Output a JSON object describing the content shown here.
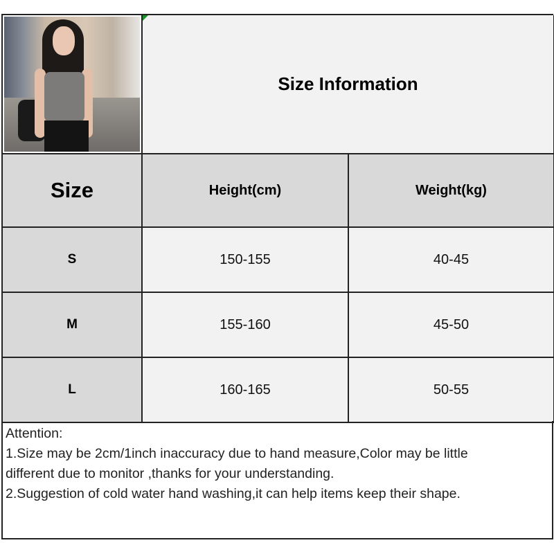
{
  "title": "Size Information",
  "headers": {
    "size": "Size",
    "height": "Height(cm)",
    "weight": "Weight(kg)"
  },
  "rows": [
    {
      "size": "S",
      "height": "150-155",
      "weight": "40-45"
    },
    {
      "size": "M",
      "height": "155-160",
      "weight": "45-50"
    },
    {
      "size": "L",
      "height": "160-165",
      "weight": "50-55"
    }
  ],
  "notes": {
    "heading": "Attention:",
    "line1": "1.Size may be 2cm/1inch inaccuracy due to hand measure,Color may be little",
    "line1b": "different due to monitor ,thanks for your understanding.",
    "line2": "2.Suggestion of cold water hand washing,it can help items keep their shape."
  },
  "colors": {
    "header_bg": "#d9d9d9",
    "cell_bg": "#f2f2f2",
    "border": "#222222"
  }
}
